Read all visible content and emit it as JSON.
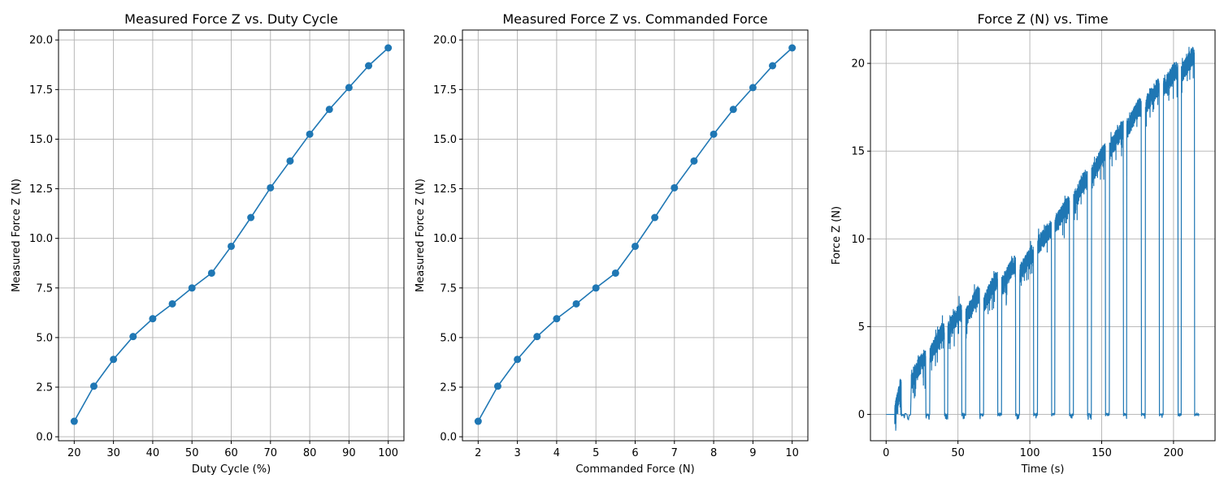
{
  "chart_data": [
    {
      "type": "line",
      "title": "Measured Force Z vs. Duty Cycle",
      "xlabel": "Duty Cycle (%)",
      "ylabel": "Measured Force Z (N)",
      "xlim": [
        16,
        104
      ],
      "ylim": [
        -0.2,
        20.5
      ],
      "xticks": [
        20,
        30,
        40,
        50,
        60,
        70,
        80,
        90,
        100
      ],
      "yticks": [
        0.0,
        2.5,
        5.0,
        7.5,
        10.0,
        12.5,
        15.0,
        17.5,
        20.0
      ],
      "tick_decimals_y": 1,
      "grid": true,
      "markers": true,
      "color": "#1f77b4",
      "x": [
        20,
        25,
        30,
        35,
        40,
        45,
        50,
        55,
        60,
        65,
        70,
        75,
        80,
        85,
        90,
        95,
        100
      ],
      "y": [
        0.78,
        2.55,
        3.9,
        5.05,
        5.95,
        6.7,
        7.5,
        8.25,
        9.6,
        11.05,
        12.55,
        13.9,
        15.25,
        16.5,
        17.6,
        18.7,
        19.6
      ]
    },
    {
      "type": "line",
      "title": "Measured Force Z vs. Commanded Force",
      "xlabel": "Commanded Force (N)",
      "ylabel": "Measured Force Z (N)",
      "xlim": [
        1.6,
        10.4
      ],
      "ylim": [
        -0.2,
        20.5
      ],
      "xticks": [
        2,
        3,
        4,
        5,
        6,
        7,
        8,
        9,
        10
      ],
      "yticks": [
        0.0,
        2.5,
        5.0,
        7.5,
        10.0,
        12.5,
        15.0,
        17.5,
        20.0
      ],
      "tick_decimals_y": 1,
      "grid": true,
      "markers": true,
      "color": "#1f77b4",
      "x": [
        2,
        2.5,
        3,
        3.5,
        4,
        4.5,
        5,
        5.5,
        6,
        6.5,
        7,
        7.5,
        8,
        8.5,
        9,
        9.5,
        10
      ],
      "y": [
        0.78,
        2.55,
        3.9,
        5.05,
        5.95,
        6.7,
        7.5,
        8.25,
        9.6,
        11.05,
        12.55,
        13.9,
        15.25,
        16.5,
        17.6,
        18.7,
        19.6
      ]
    },
    {
      "type": "line",
      "title": "Force Z (N) vs. Time",
      "xlabel": "Time (s)",
      "ylabel": "Force Z (N)",
      "xlim": [
        -10.9,
        228.9
      ],
      "ylim": [
        -1.5,
        21.9
      ],
      "xticks": [
        0,
        50,
        100,
        150,
        200
      ],
      "yticks": [
        0,
        5,
        10,
        15,
        20
      ],
      "tick_decimals_y": 0,
      "grid": true,
      "markers": false,
      "color": "#1f77b4",
      "time_series": {
        "start_idle": 6,
        "segments": [
          {
            "t0": 6,
            "t1": 10.5,
            "y0": 0.0,
            "y1": 1.5
          },
          {
            "t0": 17.5,
            "t1": 27.5,
            "y0": 2.0,
            "y1": 3.1
          },
          {
            "t0": 30.5,
            "t1": 40.5,
            "y0": 3.3,
            "y1": 4.7
          },
          {
            "t0": 43,
            "t1": 52.5,
            "y0": 4.8,
            "y1": 5.8
          },
          {
            "t0": 55.5,
            "t1": 65,
            "y0": 5.5,
            "y1": 6.8
          },
          {
            "t0": 68,
            "t1": 77.5,
            "y0": 6.3,
            "y1": 7.6
          },
          {
            "t0": 80.5,
            "t1": 90,
            "y0": 7.3,
            "y1": 8.5
          },
          {
            "t0": 93,
            "t1": 102.5,
            "y0": 8.0,
            "y1": 9.1
          },
          {
            "t0": 105.5,
            "t1": 115,
            "y0": 9.6,
            "y1": 10.5
          },
          {
            "t0": 117.5,
            "t1": 127.5,
            "y0": 10.8,
            "y1": 11.9
          },
          {
            "t0": 130.5,
            "t1": 140,
            "y0": 12.1,
            "y1": 13.4
          },
          {
            "t0": 143,
            "t1": 152.5,
            "y0": 13.6,
            "y1": 14.9
          },
          {
            "t0": 155.5,
            "t1": 165,
            "y0": 15.0,
            "y1": 16.2
          },
          {
            "t0": 167.5,
            "t1": 177.5,
            "y0": 16.2,
            "y1": 17.5
          },
          {
            "t0": 180.5,
            "t1": 190,
            "y0": 17.6,
            "y1": 18.6
          },
          {
            "t0": 193,
            "t1": 203,
            "y0": 18.6,
            "y1": 19.6
          },
          {
            "t0": 205.5,
            "t1": 214.5,
            "y0": 19.4,
            "y1": 20.4
          }
        ],
        "end_idle": 218
      }
    }
  ]
}
